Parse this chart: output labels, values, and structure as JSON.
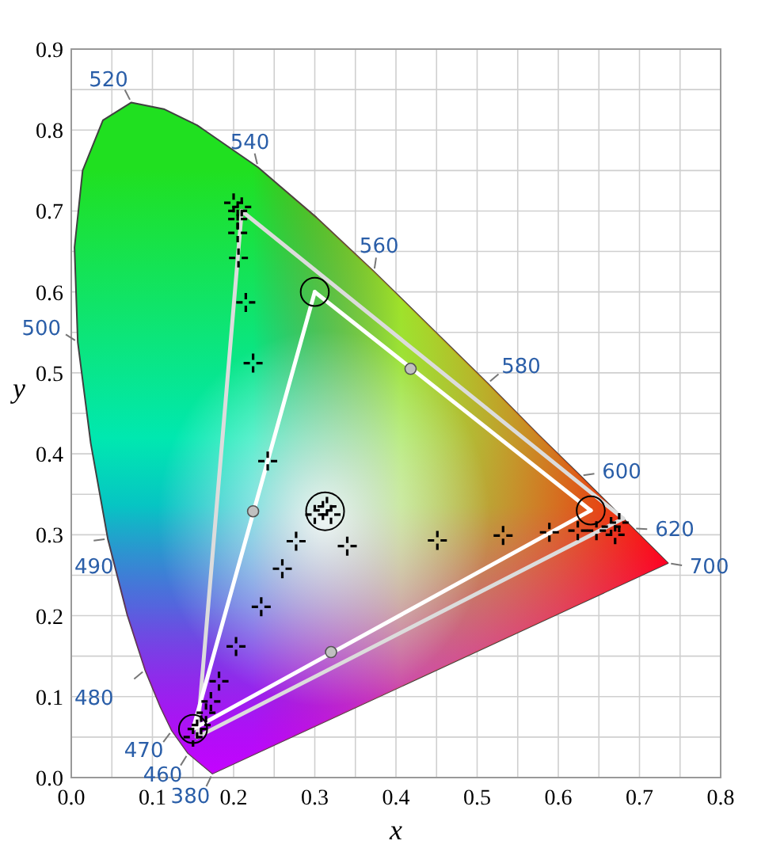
{
  "chart_data": {
    "type": "scatter",
    "xlabel": "x",
    "ylabel": "y",
    "xlim": [
      0,
      0.8
    ],
    "ylim": [
      0,
      0.9
    ],
    "xticks": [
      {
        "value": 0,
        "label": "0.0"
      },
      {
        "value": 0.05,
        "label": null
      },
      0.1,
      {
        "value": 0.15,
        "label": null
      },
      0.2,
      {
        "value": 0.25,
        "label": null
      },
      0.3,
      {
        "value": 0.35,
        "label": null
      },
      0.4,
      {
        "value": 0.45,
        "label": null
      },
      0.5,
      {
        "value": 0.55,
        "label": null
      },
      0.6,
      {
        "value": 0.65,
        "label": null
      },
      0.7,
      {
        "value": 0.75,
        "label": null
      },
      0.8
    ],
    "yticks": [
      {
        "value": 0,
        "label": "0.0"
      },
      {
        "value": 0.05,
        "label": null
      },
      0.1,
      {
        "value": 0.15,
        "label": null
      },
      0.2,
      {
        "value": 0.25,
        "label": null
      },
      0.3,
      {
        "value": 0.35,
        "label": null
      },
      0.4,
      {
        "value": 0.45,
        "label": null
      },
      0.5,
      {
        "value": 0.55,
        "label": null
      },
      0.6,
      {
        "value": 0.65,
        "label": null
      },
      0.7,
      {
        "value": 0.75,
        "label": null
      },
      0.8,
      {
        "value": 0.85,
        "label": null
      },
      0.9
    ],
    "grid": true,
    "series": [
      {
        "type": "area",
        "color": "#404040",
        "x": [
          0.174,
          0.144,
          0.124,
          0.11,
          0.091,
          0.069,
          0.045,
          0.024,
          0.008,
          0.004,
          0.014,
          0.039,
          0.074,
          0.114,
          0.155,
          0.23,
          0.302,
          0.373,
          0.444,
          0.513,
          0.575,
          0.627,
          0.666,
          0.692,
          0.719,
          0.735,
          0.174
        ],
        "values": [
          0.005,
          0.03,
          0.058,
          0.087,
          0.133,
          0.201,
          0.295,
          0.413,
          0.538,
          0.655,
          0.75,
          0.812,
          0.834,
          0.826,
          0.806,
          0.754,
          0.692,
          0.625,
          0.555,
          0.487,
          0.424,
          0.373,
          0.334,
          0.308,
          0.281,
          0.265,
          0.005
        ]
      },
      {
        "type": "line",
        "color": "#dcdcdc",
        "x": [
          0.21,
          0.68
        ],
        "values": [
          0.7,
          0.32
        ]
      },
      {
        "type": "line",
        "color": "#dcdcdc",
        "x": [
          0.155,
          0.68
        ],
        "values": [
          0.05,
          0.32
        ]
      },
      {
        "type": "line",
        "color": "#dcdcdc",
        "x": [
          0.155,
          0.21
        ],
        "values": [
          0.05,
          0.7
        ]
      },
      {
        "type": "line",
        "color": "#ffffff",
        "x": [
          0.3,
          0.64
        ],
        "values": [
          0.6,
          0.33
        ]
      },
      {
        "type": "line",
        "color": "#ffffff",
        "x": [
          0.15,
          0.64
        ],
        "values": [
          0.06,
          0.33
        ]
      },
      {
        "type": "line",
        "color": "#ffffff",
        "x": [
          0.15,
          0.3
        ],
        "values": [
          0.06,
          0.6
        ]
      },
      {
        "color": "#000000",
        "marker": "cross",
        "x": [
          0.205,
          0.2,
          0.21,
          0.205,
          0.205,
          0.206,
          0.215,
          0.224,
          0.242,
          0.277,
          0.34,
          0.26,
          0.234,
          0.203,
          0.182,
          0.172,
          0.166,
          0.155,
          0.15,
          0.16,
          0.451,
          0.532,
          0.589,
          0.624,
          0.647,
          0.665,
          0.675,
          0.67,
          0.31,
          0.3,
          0.315,
          0.32
        ],
        "values": [
          0.7,
          0.71,
          0.705,
          0.69,
          0.673,
          0.642,
          0.587,
          0.512,
          0.391,
          0.292,
          0.286,
          0.258,
          0.211,
          0.162,
          0.119,
          0.094,
          0.08,
          0.06,
          0.05,
          0.065,
          0.293,
          0.299,
          0.303,
          0.305,
          0.305,
          0.31,
          0.315,
          0.3,
          0.33,
          0.325,
          0.335,
          0.325
        ]
      },
      {
        "color": "#c0c0c0",
        "marker": "circle",
        "x": [
          0.418,
          0.224,
          0.32
        ],
        "values": [
          0.505,
          0.329,
          0.155
        ]
      },
      {
        "type": "bubble",
        "color": "#000000",
        "x": [
          0.3,
          0.64,
          0.15,
          0.3127
        ],
        "values": [
          0.6,
          0.33,
          0.06,
          0.329
        ],
        "sizes": [
          0.55,
          0.55,
          0.55,
          1
        ]
      }
    ],
    "annotations": [
      {
        "text": "520",
        "x": 0.074,
        "y": 0.834
      },
      {
        "text": "540",
        "x": 0.23,
        "y": 0.754
      },
      {
        "text": "560",
        "x": 0.373,
        "y": 0.625
      },
      {
        "text": "580",
        "x": 0.513,
        "y": 0.487
      },
      {
        "text": "600",
        "x": 0.627,
        "y": 0.373
      },
      {
        "text": "620",
        "x": 0.692,
        "y": 0.308
      },
      {
        "text": "700",
        "x": 0.735,
        "y": 0.265
      },
      {
        "text": "500",
        "x": 0.008,
        "y": 0.538
      },
      {
        "text": "490",
        "x": 0.045,
        "y": 0.295
      },
      {
        "text": "480",
        "x": 0.091,
        "y": 0.133
      },
      {
        "text": "470",
        "x": 0.124,
        "y": 0.058
      },
      {
        "text": "460",
        "x": 0.144,
        "y": 0.03
      },
      {
        "text": "380",
        "x": 0.174,
        "y": 0.005
      }
    ]
  }
}
